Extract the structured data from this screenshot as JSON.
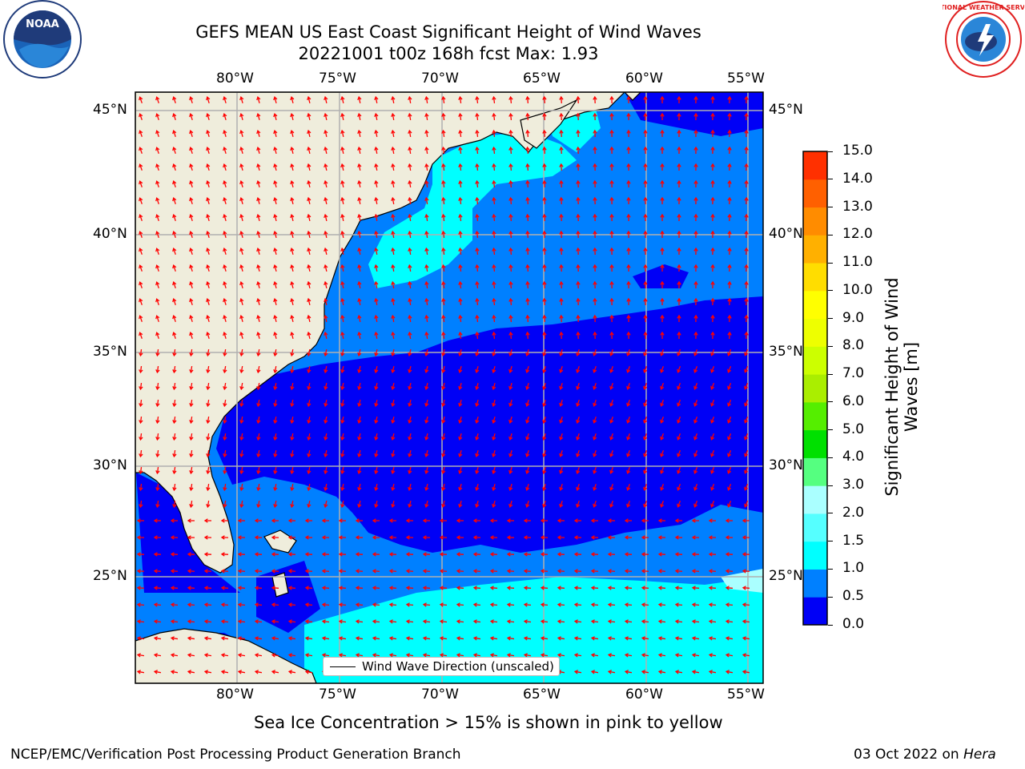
{
  "header": {
    "title_line1": "GEFS MEAN US East Coast Significant Height of Wind Waves",
    "title_line2": "20221001 t00z 168h fcst   Max: 1.93"
  },
  "logos": {
    "left": {
      "name": "NOAA",
      "ring_text": "NATIONAL OCEANIC AND ATMOSPHERIC ADMINISTRATION · U.S. DEPARTMENT OF COMMERCE"
    },
    "right": {
      "ring_text": "NATIONAL WEATHER SERVICE"
    }
  },
  "map": {
    "lon_labels": [
      "80°W",
      "75°W",
      "70°W",
      "65°W",
      "60°W",
      "55°W"
    ],
    "lat_labels": [
      "45°N",
      "40°N",
      "35°N",
      "30°N",
      "25°N"
    ],
    "legend_label": "Wind Wave Direction (unscaled)",
    "colors": {
      "land": "#efeddc",
      "ocean_low": "#0000f6",
      "ocean_mid": "#0080ff",
      "ocean_high": "#00ffff",
      "arrows": "#ff0000",
      "grid": "#b0b0b0"
    }
  },
  "colorbar": {
    "label": "Significant Height of Wind Waves [m]",
    "ticks": [
      "0.0",
      "0.5",
      "1.0",
      "1.5",
      "2.0",
      "3.0",
      "4.0",
      "5.0",
      "6.0",
      "7.0",
      "8.0",
      "9.0",
      "10.0",
      "11.0",
      "12.0",
      "13.0",
      "14.0",
      "15.0"
    ],
    "colors": [
      "#0000f6",
      "#0080ff",
      "#00ffff",
      "#55ffff",
      "#aaffff",
      "#55ff80",
      "#00e000",
      "#55ee00",
      "#aaee00",
      "#ccff00",
      "#eeff00",
      "#ffff00",
      "#ffdd00",
      "#ffb000",
      "#ff8c00",
      "#ff6000",
      "#ff3000",
      "#ff0000"
    ]
  },
  "note": "Sea Ice Concentration > 15% is shown in pink to yellow",
  "footer": {
    "left": "NCEP/EMC/Verification Post Processing Product Generation Branch",
    "date": "03 Oct 2022 on",
    "machine": "Hera"
  }
}
